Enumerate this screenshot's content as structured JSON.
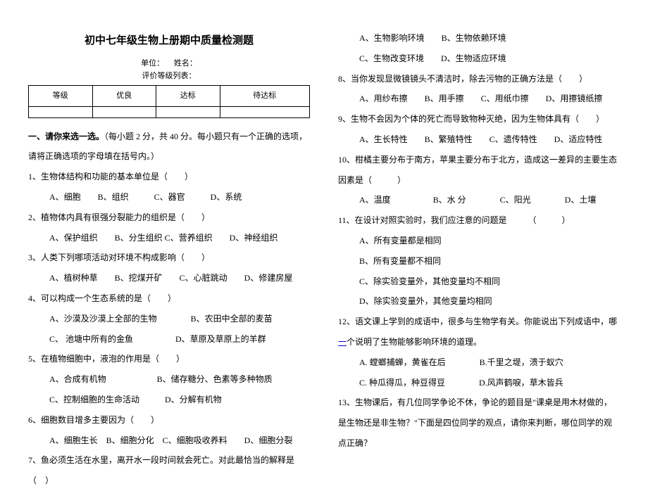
{
  "title": "初中七年级生物上册期中质量检测题",
  "unit_label": "单位：",
  "name_label": "姓名：",
  "table_caption": "评价等级列表：",
  "grade_table": {
    "headers": [
      "等级",
      "优良",
      "达标",
      "待达标"
    ]
  },
  "section1": {
    "head_prefix": "一、请你来选一选。",
    "head_rest": "（每小题 2 分，共 40 分。每小题只有一个正确的选项，请将正确选项的字母填在括号内。）"
  },
  "q1": {
    "stem": "1、生物体结构和功能的基本单位是（　　）",
    "opts": "A、细胞　　B、组织　　　C、器官　　　D、系统"
  },
  "q2": {
    "stem": "2、植物体内具有很强分裂能力的组织是（　　）",
    "opts": "A、保护组织　　B、分生组织  C、营养组织　　D、神经组织"
  },
  "q3": {
    "stem": "3、人类下列哪项活动对环境不构成影响（　　）",
    "opts": "A、植树种草　　B、挖煤开矿　　C、心脏跳动　　D、修建房屋"
  },
  "q4": {
    "stem": "4、可以构成一个生态系统的是（　　）",
    "opts_l1": "A、沙漠及沙漠上全部的生物　　　　B、农田中全部的麦苗",
    "opts_l2": "C、 池塘中所有的金鱼　　　　　D、草原及草原上的羊群"
  },
  "q5": {
    "stem": "5、在植物细胞中，液泡的作用是（　　）",
    "opts_l1": "A、合成有机物　　　　　　B、储存糖分、色素等多种物质",
    "opts_l2": "C、控制细胞的生命活动　　　D、分解有机物"
  },
  "q6": {
    "stem": "6、细胞数目增多主要因为（　　）",
    "opts": "A、细胞生长　B、细胞分化　C、细胞吸收养料　　D、细胞分裂"
  },
  "q7": {
    "stem": "7、鱼必须生活在水里，离开水一段时间就会死亡。对此最恰当的解释是（　）",
    "opts_l1": "A、生物影响环境　　B、生物依赖环境",
    "opts_l2": "C、生物改变环境　　D、生物适应环境"
  },
  "q8": {
    "stem": "8、当你发现显微镜镜头不清洁时，除去污物的正确方法是（　　）",
    "opts": "A、用纱布擦　　B、用手擦　　C、用纸巾擦　　D、用擦镜纸擦"
  },
  "q9": {
    "stem": "9、生物不会因为个体的死亡而导致物种灭绝，因为生物体具有（　　）",
    "opts": "A、生长特性　　B、繁殖特性　　C、遗传特性　　D、适应特性"
  },
  "q10": {
    "stem": "10、柑橘主要分布于南方，苹果主要分布于北方，造成这一差异的主要生态因素是（　　　）",
    "opts": "A、温度　　　　　B、水 分　　　　C、阳光　　　　D、土壤"
  },
  "q11": {
    "stem": "11、在设计对照实验时，我们应注意的问题是　　　（　　　）",
    "a": "A、所有变量都是相同",
    "b": "B、所有变量都不相同",
    "c": "C、除实验变量外，其他变量均不相同",
    "d": "D、除实验变量外，其他变量均相同"
  },
  "q12": {
    "stem_pre": "12、语文课上学到的成语中，很多与生物学有关。你能说出下列成语中，哪",
    "stem_link": "一",
    "stem_post": "个说明了生物能够影响环境的道理。",
    "opts_l1": "A. 螳螂捕蝉，黄雀在后　　　　B.千里之堤，溃于蚁穴",
    "opts_l2": "C. 种瓜得瓜，种豆得豆　　　　D.风声鹤唳，草木皆兵"
  },
  "q13": {
    "stem": "13、生物课后，有几位同学争论不休，争论的题目是\"课桌是用木材做的，是生物还是非生物？\"下面是四位同学的观点，请你来判断，哪位同学的观点正确？"
  }
}
